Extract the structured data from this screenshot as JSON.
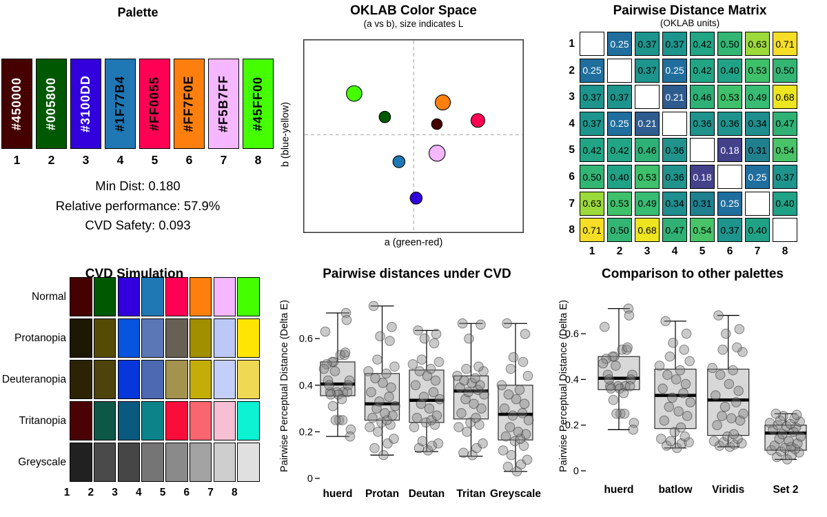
{
  "chart_data": [
    {
      "type": "palette",
      "title": "Palette",
      "swatches": [
        {
          "hex": "#450000",
          "label": "#450000",
          "number": "1",
          "text_color": "#FFFFFF"
        },
        {
          "hex": "#005800",
          "label": "#005800",
          "number": "2",
          "text_color": "#FFFFFF"
        },
        {
          "hex": "#3100DD",
          "label": "#3100DD",
          "number": "3",
          "text_color": "#FFFFFF"
        },
        {
          "hex": "#1F77B4",
          "label": "#1F77B4",
          "number": "4",
          "text_color": "#000000"
        },
        {
          "hex": "#FF0055",
          "label": "#FF0055",
          "number": "5",
          "text_color": "#000000"
        },
        {
          "hex": "#FF7F0E",
          "label": "#FF7F0E",
          "number": "6",
          "text_color": "#000000"
        },
        {
          "hex": "#F5B7FF",
          "label": "#F5B7FF",
          "number": "7",
          "text_color": "#000000"
        },
        {
          "hex": "#45FF00",
          "label": "#45FF00",
          "number": "8",
          "text_color": "#000000"
        }
      ],
      "stats": [
        "Min Dist: 0.180",
        "Relative performance: 57.9%",
        "CVD Safety: 0.093"
      ]
    },
    {
      "type": "scatter",
      "title": "OKLAB Color Space",
      "subtitle": "(a vs b), size indicates L",
      "xlabel": "a (green-red)",
      "ylabel": "b (blue-yellow)",
      "crosshair": {
        "x": 0.501,
        "y": 0.493
      },
      "points": [
        {
          "hex": "#45FF00",
          "x": 0.231,
          "y": 0.28,
          "r": 11.3
        },
        {
          "hex": "#005800",
          "x": 0.37,
          "y": 0.401,
          "r": 8.3
        },
        {
          "hex": "#FF7F0E",
          "x": 0.633,
          "y": 0.326,
          "r": 11.0
        },
        {
          "hex": "#450000",
          "x": 0.606,
          "y": 0.438,
          "r": 7.7
        },
        {
          "hex": "#FF0055",
          "x": 0.792,
          "y": 0.419,
          "r": 10.0
        },
        {
          "hex": "#F5B7FF",
          "x": 0.607,
          "y": 0.588,
          "r": 11.7
        },
        {
          "hex": "#1F77B4",
          "x": 0.434,
          "y": 0.632,
          "r": 8.7
        },
        {
          "hex": "#3100DD",
          "x": 0.512,
          "y": 0.82,
          "r": 8.7
        }
      ]
    },
    {
      "type": "heatmap",
      "title": "Pairwise Distance Matrix",
      "subtitle": "(OKLAB units)",
      "row_labels": [
        "1",
        "2",
        "3",
        "4",
        "5",
        "6",
        "7",
        "8"
      ],
      "col_labels": [
        "1",
        "2",
        "3",
        "4",
        "5",
        "6",
        "7",
        "8"
      ],
      "values": [
        [
          null,
          0.25,
          0.37,
          0.37,
          0.42,
          0.5,
          0.63,
          0.71
        ],
        [
          0.25,
          null,
          0.37,
          0.25,
          0.42,
          0.4,
          0.53,
          0.5
        ],
        [
          0.37,
          0.37,
          null,
          0.21,
          0.46,
          0.53,
          0.49,
          0.68
        ],
        [
          0.37,
          0.25,
          0.21,
          null,
          0.36,
          0.36,
          0.34,
          0.47
        ],
        [
          0.42,
          0.42,
          0.46,
          0.36,
          null,
          0.18,
          0.31,
          0.54
        ],
        [
          0.5,
          0.4,
          0.53,
          0.36,
          0.18,
          null,
          0.25,
          0.37
        ],
        [
          0.63,
          0.53,
          0.49,
          0.34,
          0.31,
          0.25,
          null,
          0.4
        ],
        [
          0.71,
          0.5,
          0.68,
          0.47,
          0.54,
          0.37,
          0.4,
          null
        ]
      ],
      "color_scale": {
        "0.18": "#44418B",
        "0.21": "#2E5C8F",
        "0.25": "#1F6E9E",
        "0.31": "#21808E",
        "0.34": "#1F8E8E",
        "0.36": "#1F938C",
        "0.37": "#1D948C",
        "0.40": "#20A286",
        "0.42": "#21A585",
        "0.46": "#2EB177",
        "0.47": "#2FB175",
        "0.49": "#38BB73",
        "0.50": "#33B574",
        "0.53": "#3FC06B",
        "0.54": "#48C368",
        "0.63": "#9CD93B",
        "0.68": "#ECE51F",
        "0.71": "#F6DE26"
      },
      "white_text_values": [
        0.18,
        0.21,
        0.25
      ]
    },
    {
      "type": "palette-grid",
      "title": "CVD Simulation",
      "rows": [
        {
          "label": "Normal",
          "colors": [
            "#450000",
            "#005800",
            "#3100DD",
            "#1F77B4",
            "#FF0055",
            "#FF7F0E",
            "#F5B7FF",
            "#45FF00"
          ]
        },
        {
          "label": "Protanopia",
          "colors": [
            "#1D1803",
            "#564B05",
            "#0754DE",
            "#5C77B6",
            "#666055",
            "#A28F00",
            "#BCC9F6",
            "#FFE503"
          ]
        },
        {
          "label": "Deuteranopia",
          "colors": [
            "#2B2303",
            "#4E430D",
            "#0737DC",
            "#4C69B1",
            "#A3934E",
            "#C4AD08",
            "#C3CFF8",
            "#EFD854"
          ]
        },
        {
          "label": "Tritanopia",
          "colors": [
            "#4B0205",
            "#0D5747",
            "#0A5A80",
            "#0B8389",
            "#F90D3A",
            "#FA6670",
            "#F6BFD3",
            "#0CF2D3"
          ]
        },
        {
          "label": "Greyscale",
          "colors": [
            "#212121",
            "#4A4A4A",
            "#464646",
            "#757575",
            "#8A8A8A",
            "#A3A3A3",
            "#CECECE",
            "#E0E0E0"
          ]
        }
      ],
      "col_labels": [
        "1",
        "2",
        "3",
        "4",
        "5",
        "6",
        "7",
        "8"
      ]
    },
    {
      "type": "box",
      "title": "Pairwise distances under CVD",
      "ylabel": "Pairwise Perceptual Distance (Delta E)",
      "yticks": [
        {
          "v": 0,
          "label": "0"
        },
        {
          "v": 0.2,
          "label": "0.2"
        },
        {
          "v": 0.4,
          "label": "0.4"
        },
        {
          "v": 0.6,
          "label": "0.6"
        }
      ],
      "categories": [
        "huerd",
        "Protan",
        "Deutan",
        "Tritan",
        "Greyscale"
      ],
      "groups": [
        {
          "label": "huerd",
          "low": 0.18,
          "q1": 0.355,
          "med": 0.405,
          "q3": 0.5,
          "high": 0.71,
          "points": [
            0.25,
            0.37,
            0.37,
            0.42,
            0.5,
            0.63,
            0.71,
            0.37,
            0.25,
            0.42,
            0.4,
            0.53,
            0.5,
            0.21,
            0.46,
            0.53,
            0.49,
            0.68,
            0.36,
            0.36,
            0.34,
            0.47,
            0.18,
            0.31,
            0.54,
            0.25,
            0.37,
            0.4
          ]
        },
        {
          "label": "Protan",
          "low": 0.1,
          "q1": 0.25,
          "med": 0.32,
          "q3": 0.45,
          "high": 0.74,
          "points": [
            0.1,
            0.13,
            0.15,
            0.17,
            0.2,
            0.22,
            0.23,
            0.24,
            0.25,
            0.26,
            0.27,
            0.28,
            0.3,
            0.31,
            0.33,
            0.35,
            0.37,
            0.39,
            0.41,
            0.43,
            0.45,
            0.46,
            0.48,
            0.51,
            0.59,
            0.61,
            0.65,
            0.74
          ]
        },
        {
          "label": "Deutan",
          "low": 0.115,
          "q1": 0.24,
          "med": 0.335,
          "q3": 0.465,
          "high": 0.635,
          "points": [
            0.12,
            0.13,
            0.14,
            0.15,
            0.16,
            0.22,
            0.23,
            0.24,
            0.25,
            0.26,
            0.27,
            0.3,
            0.32,
            0.34,
            0.35,
            0.37,
            0.4,
            0.42,
            0.44,
            0.46,
            0.47,
            0.49,
            0.5,
            0.51,
            0.58,
            0.6,
            0.62,
            0.635
          ]
        },
        {
          "label": "Tritan",
          "low": 0.095,
          "q1": 0.255,
          "med": 0.375,
          "q3": 0.44,
          "high": 0.665,
          "points": [
            0.1,
            0.11,
            0.13,
            0.15,
            0.2,
            0.22,
            0.23,
            0.24,
            0.26,
            0.28,
            0.3,
            0.32,
            0.34,
            0.36,
            0.37,
            0.38,
            0.39,
            0.4,
            0.41,
            0.42,
            0.43,
            0.44,
            0.46,
            0.47,
            0.48,
            0.6,
            0.66,
            0.665
          ]
        },
        {
          "label": "Greyscale",
          "low": 0.03,
          "q1": 0.165,
          "med": 0.275,
          "q3": 0.4,
          "high": 0.665,
          "points": [
            0.03,
            0.05,
            0.06,
            0.08,
            0.1,
            0.12,
            0.14,
            0.16,
            0.17,
            0.18,
            0.19,
            0.2,
            0.22,
            0.25,
            0.27,
            0.28,
            0.3,
            0.32,
            0.34,
            0.36,
            0.38,
            0.4,
            0.44,
            0.47,
            0.5,
            0.52,
            0.62,
            0.665
          ]
        }
      ]
    },
    {
      "type": "box",
      "title": "Comparison to other palettes",
      "ylabel": "Pairwise Perceptual Distance (Delta E)",
      "yticks": [
        {
          "v": 0,
          "label": "0"
        },
        {
          "v": 0.2,
          "label": "0.2"
        },
        {
          "v": 0.4,
          "label": "0.4"
        },
        {
          "v": 0.6,
          "label": "0.6"
        }
      ],
      "categories": [
        "huerd",
        "batlow",
        "Viridis",
        "Set 2"
      ],
      "groups": [
        {
          "label": "huerd",
          "low": 0.18,
          "q1": 0.355,
          "med": 0.405,
          "q3": 0.5,
          "high": 0.71,
          "points": [
            0.25,
            0.37,
            0.37,
            0.42,
            0.5,
            0.63,
            0.71,
            0.37,
            0.25,
            0.42,
            0.4,
            0.53,
            0.5,
            0.21,
            0.46,
            0.53,
            0.49,
            0.68,
            0.36,
            0.36,
            0.34,
            0.47,
            0.18,
            0.31,
            0.54,
            0.25,
            0.37,
            0.4
          ]
        },
        {
          "label": "batlow",
          "low": 0.1,
          "q1": 0.185,
          "med": 0.33,
          "q3": 0.445,
          "high": 0.655,
          "points": [
            0.1,
            0.11,
            0.12,
            0.125,
            0.13,
            0.14,
            0.15,
            0.17,
            0.19,
            0.22,
            0.24,
            0.26,
            0.28,
            0.3,
            0.32,
            0.34,
            0.36,
            0.38,
            0.4,
            0.42,
            0.44,
            0.46,
            0.48,
            0.5,
            0.53,
            0.56,
            0.6,
            0.655
          ]
        },
        {
          "label": "Viridis",
          "low": 0.105,
          "q1": 0.155,
          "med": 0.31,
          "q3": 0.445,
          "high": 0.68,
          "points": [
            0.105,
            0.11,
            0.115,
            0.12,
            0.125,
            0.13,
            0.14,
            0.15,
            0.16,
            0.2,
            0.22,
            0.23,
            0.24,
            0.25,
            0.28,
            0.3,
            0.33,
            0.35,
            0.38,
            0.42,
            0.44,
            0.45,
            0.52,
            0.53,
            0.54,
            0.6,
            0.62,
            0.68
          ]
        },
        {
          "label": "Set 2",
          "low": 0.05,
          "q1": 0.09,
          "med": 0.165,
          "q3": 0.2,
          "high": 0.25,
          "points": [
            0.05,
            0.06,
            0.07,
            0.08,
            0.085,
            0.09,
            0.095,
            0.1,
            0.105,
            0.11,
            0.12,
            0.13,
            0.14,
            0.15,
            0.16,
            0.17,
            0.18,
            0.19,
            0.195,
            0.2,
            0.205,
            0.21,
            0.215,
            0.22,
            0.23,
            0.24,
            0.245,
            0.25
          ]
        }
      ]
    }
  ]
}
